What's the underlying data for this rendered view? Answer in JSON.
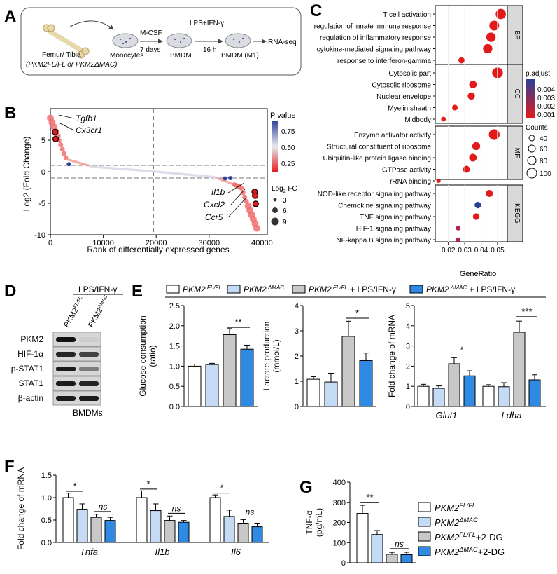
{
  "panels": {
    "A": "A",
    "B": "B",
    "C": "C",
    "D": "D",
    "E": "E",
    "F": "F",
    "G": "G"
  },
  "panel_a": {
    "femur_label": "Femur/ Tibia",
    "genotypes": "(PKM2FL/FL or PKM2ΔMAC)",
    "monocytes": "Monocytes",
    "mcsf": "M-CSF",
    "days": "7 days",
    "bmdm": "BMDM",
    "stim": "LPS+IFN-γ",
    "hours": "16 h",
    "bmdm_m1": "BMDM (M1)",
    "rnaseq": "RNA-seq"
  },
  "panel_b": {
    "ylabel": "Log2 (Fold Change)",
    "xlabel": "Rank of differentially expressed genes",
    "legend_p_title": "P value",
    "legend_p_ticks": [
      "0.75",
      "0.50",
      "0.25"
    ],
    "legend_fc_title": "Log2 FC",
    "legend_fc_values": [
      "3",
      "6",
      "9"
    ],
    "genes_up": [
      "Tgfb1",
      "Cx3cr1"
    ],
    "genes_down": [
      "Il1b",
      "Cxcl2",
      "Ccr5"
    ]
  },
  "panel_d": {
    "treatment": "LPS/IFN-γ",
    "lanes": [
      "PKM2FL/FL",
      "PKM2ΔMAC"
    ],
    "proteins": [
      "PKM2",
      "HIF-1α",
      "p-STAT1",
      "STAT1",
      "β-actin"
    ],
    "footer": "BMDMs"
  },
  "legend_e": {
    "items": [
      "PKM2 FL/FL",
      "PKM2 ΔMAC",
      "PKM2 FL/FL + LPS/IFN-γ",
      "PKM2 ΔMAC + LPS/IFN-γ"
    ]
  },
  "legend_g": {
    "items": [
      "PKM2FL/FL",
      "PKM2ΔMAC",
      "PKM2FL/FL+2-DG",
      "PKM2ΔMAC+2-DG"
    ]
  },
  "colors": {
    "white": "#ffffff",
    "light_blue": "#c5daf5",
    "gray": "#c8c8c8",
    "blue": "#2f8ae3",
    "red": "#e31a1c",
    "navy": "#2c3f99"
  },
  "chart_data": [
    {
      "id": "B",
      "type": "scatter",
      "title": "",
      "xlabel": "Rank of differentially expressed genes",
      "ylabel": "Log2 (Fold Change)",
      "xlim": [
        0,
        41000
      ],
      "ylim": [
        -10,
        10
      ],
      "xticks": [
        0,
        10000,
        20000,
        30000,
        40000
      ],
      "yticks": [
        5,
        0,
        -5,
        -10
      ],
      "threshold_lines_y": [
        1,
        -1
      ],
      "threshold_line_x": 19500
    },
    {
      "id": "C",
      "type": "scatter",
      "xlabel": "GeneRatio",
      "xlim": [
        0.012,
        0.056
      ],
      "xticks": [
        0.02,
        0.03,
        0.04,
        0.05
      ],
      "legend_padj_title": "p.adjust",
      "legend_padj_ticks": [
        "0.004",
        "0.003",
        "0.002",
        "0.001"
      ],
      "legend_counts_title": "Counts",
      "legend_counts_values": [
        "40",
        "60",
        "80",
        "100"
      ],
      "groups": [
        {
          "name": "BP",
          "terms": [
            {
              "term": "T cell activation",
              "ratio": 0.052,
              "count": 90,
              "color": "#e31a1c"
            },
            {
              "term": "regulation of innate immune response",
              "ratio": 0.048,
              "count": 85,
              "color": "#e31a1c"
            },
            {
              "term": "regulation of inflammatory response",
              "ratio": 0.046,
              "count": 80,
              "color": "#e31a1c"
            },
            {
              "term": "cytokine-mediated signaling pathway",
              "ratio": 0.044,
              "count": 80,
              "color": "#e31a1c"
            },
            {
              "term": "response to interferon-gamma",
              "ratio": 0.028,
              "count": 45,
              "color": "#e31a1c"
            }
          ]
        },
        {
          "name": "CC",
          "terms": [
            {
              "term": "Cytosolic part",
              "ratio": 0.05,
              "count": 95,
              "color": "#e31a1c"
            },
            {
              "term": "Cytosolic ribosome",
              "ratio": 0.035,
              "count": 60,
              "color": "#e31a1c"
            },
            {
              "term": "Nuclear envelope",
              "ratio": 0.034,
              "count": 58,
              "color": "#e31a1c"
            },
            {
              "term": "Myelin sheath",
              "ratio": 0.024,
              "count": 40,
              "color": "#e31a1c"
            },
            {
              "term": "Midbody",
              "ratio": 0.017,
              "count": 30,
              "color": "#e31a1c"
            }
          ]
        },
        {
          "name": "MF",
          "terms": [
            {
              "term": "Enzyme activator activity",
              "ratio": 0.048,
              "count": 95,
              "color": "#e31a1c"
            },
            {
              "term": "Structural constituent of ribosome",
              "ratio": 0.037,
              "count": 65,
              "color": "#e31a1c"
            },
            {
              "term": "Ubiquitin-like protein ligase binding",
              "ratio": 0.035,
              "count": 62,
              "color": "#e31a1c"
            },
            {
              "term": "GTPase activity",
              "ratio": 0.031,
              "count": 55,
              "color": "#e31a1c"
            },
            {
              "term": "rRNA binding",
              "ratio": 0.014,
              "count": 25,
              "color": "#e31a1c"
            }
          ]
        },
        {
          "name": "KEGG",
          "terms": [
            {
              "term": "NOD-like receptor signaling pathway",
              "ratio": 0.045,
              "count": 55,
              "color": "#e31a1c"
            },
            {
              "term": "Chemokine signaling pathway",
              "ratio": 0.038,
              "count": 50,
              "color": "#2c3f99"
            },
            {
              "term": "TNF signaling pathway",
              "ratio": 0.037,
              "count": 50,
              "color": "#e31a1c"
            },
            {
              "term": "HIF-1 signaling pathway",
              "ratio": 0.026,
              "count": 30,
              "color": "#b2254a"
            },
            {
              "term": "NF-kappa B signaling pathway",
              "ratio": 0.026,
              "count": 30,
              "color": "#b2254a"
            }
          ]
        }
      ]
    },
    {
      "id": "E1",
      "type": "bar",
      "ylabel": "Glucose consumption (ratio)",
      "ylim": [
        0,
        2.5
      ],
      "yticks": [
        "0.0",
        "0.5",
        "1.0",
        "1.5",
        "2.0",
        "2.5"
      ],
      "values": [
        1.0,
        1.04,
        1.78,
        1.42
      ],
      "errors": [
        0.05,
        0.03,
        0.15,
        0.1
      ],
      "sig": [
        {
          "label": "**",
          "from": 2,
          "to": 3
        }
      ]
    },
    {
      "id": "E2",
      "type": "bar",
      "ylabel": "Lactate production (mmol/L)",
      "ylim": [
        0,
        4
      ],
      "yticks": [
        "0",
        "1",
        "2",
        "3",
        "4"
      ],
      "values": [
        1.08,
        0.97,
        2.78,
        1.82
      ],
      "errors": [
        0.1,
        0.35,
        0.6,
        0.3
      ],
      "sig": [
        {
          "label": "*",
          "from": 2,
          "to": 3
        }
      ]
    },
    {
      "id": "E3",
      "type": "bar",
      "ylabel": "Fold change of mRNA",
      "ylim": [
        0,
        5
      ],
      "yticks": [
        "0",
        "1",
        "2",
        "3",
        "4",
        "5"
      ],
      "categories": [
        "Glut1",
        "Ldha"
      ],
      "series": [
        {
          "name": "PKM2 FL/FL",
          "values": [
            1.0,
            1.0
          ],
          "errors": [
            0.1,
            0.08
          ]
        },
        {
          "name": "PKM2 ΔMAC",
          "values": [
            0.9,
            0.98
          ],
          "errors": [
            0.12,
            0.2
          ]
        },
        {
          "name": "PKM2 FL/FL + LPS/IFN-γ",
          "values": [
            2.12,
            3.68
          ],
          "errors": [
            0.3,
            0.55
          ]
        },
        {
          "name": "PKM2 ΔMAC + LPS/IFN-γ",
          "values": [
            1.52,
            1.32
          ],
          "errors": [
            0.25,
            0.25
          ]
        }
      ],
      "sig": [
        {
          "label": "*",
          "cat": 0
        },
        {
          "label": "***",
          "cat": 1
        }
      ]
    },
    {
      "id": "F",
      "type": "bar",
      "ylabel": "Fold change of mRNA",
      "ylim": [
        0,
        1.5
      ],
      "yticks": [
        "0.0",
        "0.5",
        "1.0",
        "1.5"
      ],
      "categories": [
        "Tnfa",
        "Il1b",
        "Il6"
      ],
      "series": [
        {
          "name": "PKM2FL/FL",
          "values": [
            1.0,
            1.0,
            1.0
          ],
          "errors": [
            0.1,
            0.15,
            0.06
          ]
        },
        {
          "name": "PKM2ΔMAC",
          "values": [
            0.74,
            0.71,
            0.58
          ],
          "errors": [
            0.12,
            0.15,
            0.14
          ]
        },
        {
          "name": "PKM2FL/FL+2-DG",
          "values": [
            0.56,
            0.49,
            0.43
          ],
          "errors": [
            0.07,
            0.1,
            0.08
          ]
        },
        {
          "name": "PKM2ΔMAC+2-DG",
          "values": [
            0.49,
            0.45,
            0.35
          ],
          "errors": [
            0.07,
            0.04,
            0.08
          ]
        }
      ],
      "sig": [
        {
          "label": "*",
          "type": "a"
        },
        {
          "label": "ns",
          "type": "b"
        }
      ]
    },
    {
      "id": "G",
      "type": "bar",
      "ylabel": "TNF-α (pg/mL)",
      "ylim": [
        0,
        400
      ],
      "yticks": [
        "0",
        "100",
        "200",
        "300",
        "400"
      ],
      "values": [
        245,
        140,
        42,
        40
      ],
      "errors": [
        40,
        20,
        10,
        12
      ],
      "sig": [
        {
          "label": "**",
          "from": 0,
          "to": 1
        },
        {
          "label": "ns",
          "from": 2,
          "to": 3
        }
      ]
    }
  ]
}
